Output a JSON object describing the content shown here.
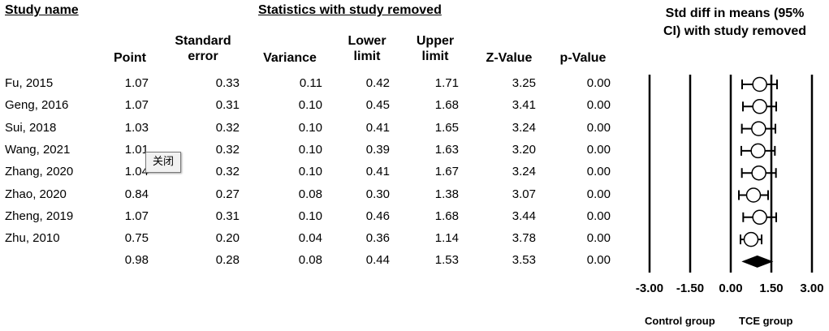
{
  "headers": {
    "study_name": "Study name",
    "stats_group": "Statistics with study removed",
    "plot_title": [
      "Std diff in means (95%",
      "CI) with study removed"
    ],
    "columns": [
      {
        "lines": [
          "Point"
        ]
      },
      {
        "lines": [
          "Standard",
          "error"
        ]
      },
      {
        "lines": [
          "Variance"
        ]
      },
      {
        "lines": [
          "Lower",
          "limit"
        ]
      },
      {
        "lines": [
          "Upper",
          "limit"
        ]
      },
      {
        "lines": [
          "Z-Value"
        ]
      },
      {
        "lines": [
          "p-Value"
        ]
      }
    ]
  },
  "rows": [
    {
      "study": "Fu, 2015",
      "point": "1.07",
      "se": "0.33",
      "variance": "0.11",
      "lower": "0.42",
      "upper": "1.71",
      "z": "3.25",
      "p": "0.00"
    },
    {
      "study": "Geng, 2016",
      "point": "1.07",
      "se": "0.31",
      "variance": "0.10",
      "lower": "0.45",
      "upper": "1.68",
      "z": "3.41",
      "p": "0.00"
    },
    {
      "study": "Sui, 2018",
      "point": "1.03",
      "se": "0.32",
      "variance": "0.10",
      "lower": "0.41",
      "upper": "1.65",
      "z": "3.24",
      "p": "0.00"
    },
    {
      "study": "Wang, 2021",
      "point": "1.01",
      "se": "0.32",
      "variance": "0.10",
      "lower": "0.39",
      "upper": "1.63",
      "z": "3.20",
      "p": "0.00"
    },
    {
      "study": "Zhang, 2020",
      "point": "1.04",
      "se": "0.32",
      "variance": "0.10",
      "lower": "0.41",
      "upper": "1.67",
      "z": "3.24",
      "p": "0.00"
    },
    {
      "study": "Zhao, 2020",
      "point": "0.84",
      "se": "0.27",
      "variance": "0.08",
      "lower": "0.30",
      "upper": "1.38",
      "z": "3.07",
      "p": "0.00"
    },
    {
      "study": "Zheng, 2019",
      "point": "1.07",
      "se": "0.31",
      "variance": "0.10",
      "lower": "0.46",
      "upper": "1.68",
      "z": "3.44",
      "p": "0.00"
    },
    {
      "study": "Zhu, 2010",
      "point": "0.75",
      "se": "0.20",
      "variance": "0.04",
      "lower": "0.36",
      "upper": "1.14",
      "z": "3.78",
      "p": "0.00"
    },
    {
      "study": "",
      "point": "0.98",
      "se": "0.28",
      "variance": "0.08",
      "lower": "0.44",
      "upper": "1.53",
      "z": "3.53",
      "p": "0.00"
    }
  ],
  "tooltip": {
    "text": "关闭"
  },
  "chart_data": {
    "type": "forest",
    "title": "Std diff in means (95% CI) with study removed",
    "xlim": [
      -3.0,
      3.0
    ],
    "x_ticks": [
      -3.0,
      -1.5,
      0.0,
      1.5,
      3.0
    ],
    "x_tick_labels": [
      "-3.00",
      "-1.50",
      "0.00",
      "1.50",
      "3.00"
    ],
    "xlabel_left": "Control group",
    "xlabel_right": "TCE group",
    "studies": [
      {
        "name": "Fu, 2015",
        "point": 1.07,
        "lower": 0.42,
        "upper": 1.71
      },
      {
        "name": "Geng, 2016",
        "point": 1.07,
        "lower": 0.45,
        "upper": 1.68
      },
      {
        "name": "Sui, 2018",
        "point": 1.03,
        "lower": 0.41,
        "upper": 1.65
      },
      {
        "name": "Wang, 2021",
        "point": 1.01,
        "lower": 0.39,
        "upper": 1.63
      },
      {
        "name": "Zhang, 2020",
        "point": 1.04,
        "lower": 0.41,
        "upper": 1.67
      },
      {
        "name": "Zhao, 2020",
        "point": 0.84,
        "lower": 0.3,
        "upper": 1.38
      },
      {
        "name": "Zheng, 2019",
        "point": 1.07,
        "lower": 0.46,
        "upper": 1.68
      },
      {
        "name": "Zhu, 2010",
        "point": 0.75,
        "lower": 0.36,
        "upper": 1.14
      }
    ],
    "summary": {
      "point": 0.98,
      "lower": 0.44,
      "upper": 1.53
    }
  }
}
